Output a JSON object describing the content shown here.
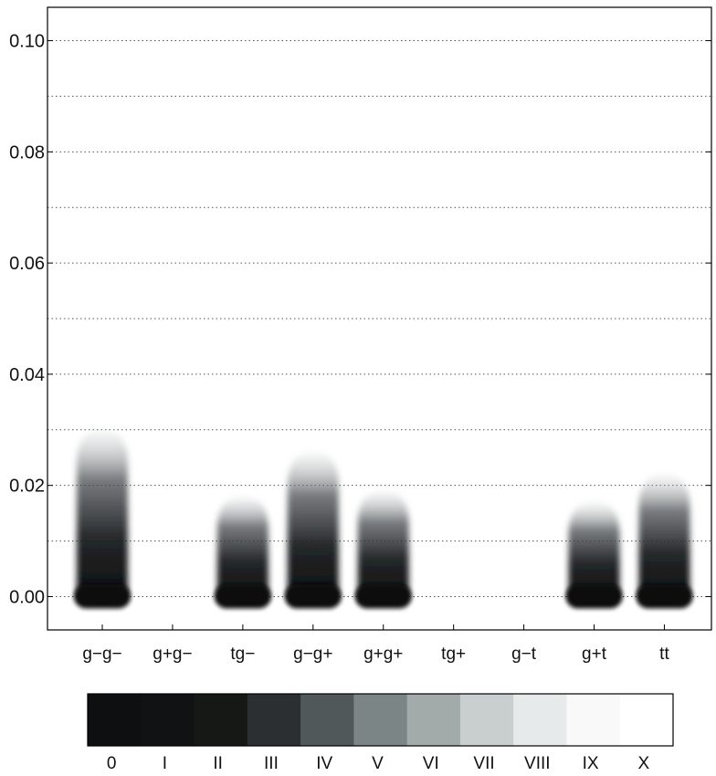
{
  "chart_data": {
    "type": "bar",
    "categories": [
      "g−g−",
      "g+g−",
      "tg−",
      "g−g+",
      "g+g+",
      "tg+",
      "g−t",
      "g+t",
      "tt"
    ],
    "values": [
      0.03,
      0.0,
      0.018,
      0.026,
      0.019,
      0.0,
      0.0,
      0.017,
      0.022
    ],
    "ylim": [
      -0.006,
      0.106
    ],
    "yticks": [
      0.0,
      0.02,
      0.04,
      0.06,
      0.08,
      0.1
    ],
    "ytick_labels": [
      "0.00",
      "0.02",
      "0.04",
      "0.06",
      "0.08",
      "0.10"
    ],
    "grid": true,
    "legend": {
      "placement": "bottom",
      "labels": [
        "0",
        "I",
        "II",
        "III",
        "IV",
        "V",
        "VI",
        "VII",
        "VIII",
        "IX",
        "X"
      ],
      "colors": [
        "#0e0f10",
        "#111214",
        "#161816",
        "#2b2f31",
        "#50585a",
        "#7b8585",
        "#a2aaaa",
        "#c9cfce",
        "#e7eaea",
        "#f9f9f9",
        "#ffffff"
      ]
    }
  }
}
